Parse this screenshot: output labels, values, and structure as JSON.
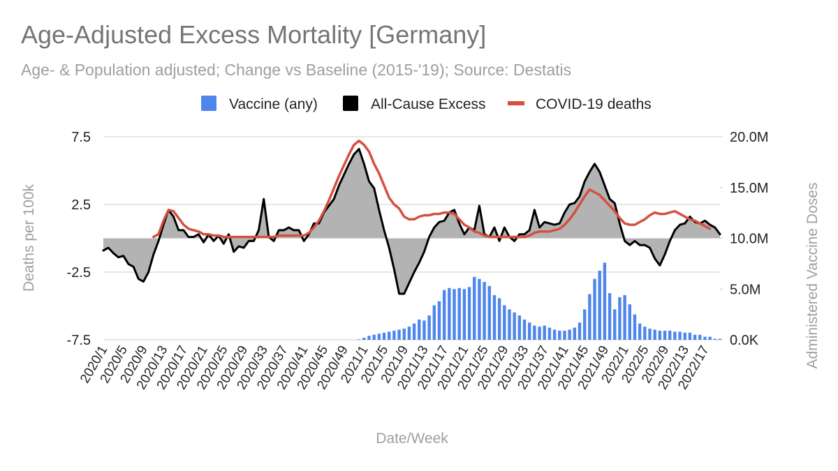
{
  "chart_data": {
    "type": "combo",
    "title": "Age-Adjusted Excess Mortality [Germany]",
    "subtitle": "Age- & Population adjusted; Change vs Baseline (2015-'19); Source: Destatis",
    "x_label": "Date/Week",
    "y_label": "Deaths per 100k",
    "y2_label": "Administered Vaccine Doses",
    "categories": [
      "2020/1",
      null,
      null,
      null,
      "2020/5",
      null,
      null,
      null,
      "2020/9",
      null,
      null,
      null,
      "2020/13",
      null,
      null,
      null,
      "2020/17",
      null,
      null,
      null,
      "2020/21",
      null,
      null,
      null,
      "2020/25",
      null,
      null,
      null,
      "2020/29",
      null,
      null,
      null,
      "2020/33",
      null,
      null,
      null,
      "2020/37",
      null,
      null,
      null,
      "2020/41",
      null,
      null,
      null,
      "2020/45",
      null,
      null,
      null,
      "2020/49",
      null,
      null,
      null,
      "2021/1",
      null,
      null,
      null,
      "2021/5",
      null,
      null,
      null,
      "2021/9",
      null,
      null,
      null,
      "2021/13",
      null,
      null,
      null,
      "2021/17",
      null,
      null,
      null,
      "2021/21",
      null,
      null,
      null,
      "2021/25",
      null,
      null,
      null,
      "2021/29",
      null,
      null,
      null,
      "2021/33",
      null,
      null,
      null,
      "2021/37",
      null,
      null,
      null,
      "2021/41",
      null,
      null,
      null,
      "2021/45",
      null,
      null,
      null,
      "2021/49",
      null,
      null,
      null,
      "2022/1",
      null,
      null,
      null,
      "2022/5",
      null,
      null,
      null,
      "2022/9",
      null,
      null,
      null,
      "2022/13",
      null,
      null,
      null,
      "2022/17",
      null,
      null,
      null
    ],
    "series": [
      {
        "name": "Vaccine (any)",
        "color": "#4f86ec",
        "type": "bar",
        "axis": "y2",
        "values": [
          null,
          null,
          null,
          null,
          null,
          null,
          null,
          null,
          null,
          null,
          null,
          null,
          null,
          null,
          null,
          null,
          null,
          null,
          null,
          null,
          null,
          null,
          null,
          null,
          null,
          null,
          null,
          null,
          null,
          null,
          null,
          null,
          null,
          null,
          null,
          null,
          null,
          null,
          null,
          null,
          null,
          null,
          null,
          null,
          null,
          null,
          null,
          null,
          null,
          null,
          null,
          50000,
          200000,
          400000,
          500000,
          600000,
          700000,
          800000,
          900000,
          1000000,
          1100000,
          1300000,
          1600000,
          2000000,
          1900000,
          2400000,
          3400000,
          3800000,
          4900000,
          5100000,
          5000000,
          5100000,
          5000000,
          5200000,
          6200000,
          6000000,
          5700000,
          5300000,
          4400000,
          4100000,
          3400000,
          3000000,
          2700000,
          2400000,
          2000000,
          1700000,
          1400000,
          1300000,
          1400000,
          1200000,
          1000000,
          900000,
          900000,
          1000000,
          1200000,
          1700000,
          3000000,
          4500000,
          6000000,
          6800000,
          7600000,
          4600000,
          3000000,
          4200000,
          4400000,
          3500000,
          2500000,
          1600000,
          1300000,
          1100000,
          1000000,
          900000,
          900000,
          900000,
          800000,
          800000,
          700000,
          700000,
          500000,
          500000,
          300000,
          300000,
          100000,
          100000
        ]
      },
      {
        "name": "All-Cause Excess",
        "color": "#000000",
        "type": "area",
        "fill": "#b3b3b3",
        "values": [
          -0.9,
          -0.7,
          -1.1,
          -1.4,
          -1.3,
          -1.9,
          -2.1,
          -3.0,
          -3.2,
          -2.5,
          -1.2,
          -0.2,
          1.0,
          2.1,
          1.6,
          0.6,
          0.6,
          0.1,
          0.1,
          0.3,
          -0.3,
          0.3,
          -0.2,
          0.2,
          -0.4,
          0.3,
          -1.0,
          -0.6,
          -0.7,
          -0.2,
          -0.2,
          0.6,
          2.9,
          0.1,
          -0.2,
          0.6,
          0.6,
          0.8,
          0.6,
          0.6,
          -0.2,
          0.3,
          1.1,
          1.1,
          1.9,
          2.4,
          2.9,
          3.9,
          4.7,
          5.5,
          6.2,
          6.6,
          5.5,
          4.2,
          3.7,
          2.1,
          0.6,
          -0.7,
          -2.3,
          -4.1,
          -4.1,
          -3.3,
          -2.5,
          -1.8,
          -1.0,
          0.1,
          0.8,
          1.2,
          1.3,
          1.9,
          2.1,
          1.1,
          0.3,
          0.8,
          0.6,
          2.4,
          0.3,
          0.1,
          0.8,
          -0.2,
          0.8,
          0.1,
          -0.2,
          0.3,
          0.3,
          0.6,
          2.1,
          0.8,
          1.2,
          1.1,
          1.0,
          1.1,
          1.9,
          2.5,
          2.6,
          3.1,
          4.2,
          4.9,
          5.5,
          4.9,
          3.9,
          2.9,
          2.6,
          1.1,
          -0.2,
          -0.5,
          -0.2,
          -0.5,
          -0.5,
          -0.7,
          -1.5,
          -2.0,
          -1.2,
          -0.2,
          0.6,
          1.0,
          1.1,
          1.6,
          1.2,
          1.1,
          1.3,
          1.0,
          0.8,
          0.3
        ]
      },
      {
        "name": "COVID-19 deaths",
        "color": "#d4503f",
        "type": "line",
        "values": [
          null,
          null,
          null,
          null,
          null,
          null,
          null,
          null,
          null,
          null,
          0.1,
          0.3,
          1.3,
          2.1,
          2.0,
          1.5,
          1.0,
          0.7,
          0.6,
          0.5,
          0.3,
          0.3,
          0.2,
          0.2,
          0.1,
          0.1,
          0.1,
          0.1,
          0.1,
          0.1,
          0.1,
          0.1,
          0.1,
          0.1,
          0.1,
          0.2,
          0.2,
          0.2,
          0.2,
          0.2,
          0.2,
          0.4,
          0.8,
          1.3,
          2.0,
          2.8,
          3.7,
          4.6,
          5.4,
          6.2,
          6.9,
          7.2,
          6.9,
          6.4,
          5.5,
          4.8,
          3.9,
          3.0,
          2.5,
          2.2,
          1.6,
          1.4,
          1.4,
          1.6,
          1.7,
          1.7,
          1.8,
          1.8,
          1.9,
          1.9,
          1.8,
          1.4,
          1.0,
          0.8,
          0.5,
          0.4,
          0.2,
          0.1,
          0.1,
          0.1,
          0.1,
          0.1,
          0.1,
          0.1,
          0.1,
          0.2,
          0.4,
          0.5,
          0.5,
          0.5,
          0.6,
          0.7,
          1.0,
          1.4,
          1.9,
          2.5,
          3.1,
          3.6,
          3.4,
          3.2,
          2.8,
          2.4,
          2.0,
          1.5,
          1.1,
          1.0,
          1.0,
          1.2,
          1.4,
          1.7,
          1.9,
          1.8,
          1.8,
          1.9,
          2.0,
          1.8,
          1.6,
          1.4,
          1.3,
          1.1,
          0.9,
          0.7,
          null,
          null
        ]
      }
    ],
    "ylim": [
      -7.5,
      7.5
    ],
    "yticks": [
      -7.5,
      -2.5,
      2.5,
      7.5
    ],
    "y2lim": [
      0,
      20000000
    ],
    "y2ticks": [
      {
        "value": 0,
        "label": "0.0K"
      },
      {
        "value": 5000000,
        "label": "5.0M"
      },
      {
        "value": 10000000,
        "label": "10.0M"
      },
      {
        "value": 15000000,
        "label": "15.0M"
      },
      {
        "value": 20000000,
        "label": "20.0M"
      }
    ],
    "grid": true,
    "legend": "top"
  }
}
